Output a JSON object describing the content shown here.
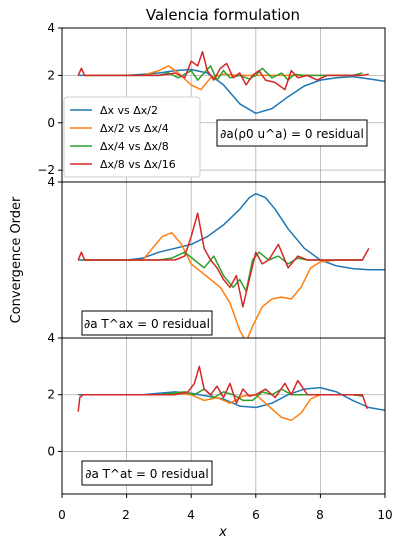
{
  "chart_data": {
    "type": "line",
    "title": "Valencia formulation",
    "xlabel": "x",
    "ylabel": "Convergence Order",
    "xlim": [
      0,
      10
    ],
    "xticks": [
      "0",
      "2",
      "4",
      "6",
      "8",
      "10"
    ],
    "grid": true,
    "legend": {
      "placement": "lower-left of top panel",
      "entries": [
        "Δx vs Δx/2",
        "Δx/2 vs Δx/4",
        "Δx/4 vs Δx/8",
        "Δx/8 vs Δx/16"
      ]
    },
    "colors": [
      "#1f77b4",
      "#ff7f0e",
      "#2ca02c",
      "#d62728"
    ],
    "panels": [
      {
        "annotation": "∂a(ρ0 u^a) = 0 residual",
        "ylim": [
          -2.5,
          4
        ],
        "yticks": [
          4,
          2,
          0,
          -2
        ],
        "ytick_labels": [
          "4",
          "2",
          "0",
          "−2"
        ],
        "series": [
          {
            "name": "Δx vs Δx/2",
            "x": [
              0.5,
              1,
              1.5,
              2,
              2.5,
              3,
              3.5,
              4,
              4.5,
              5,
              5.5,
              6,
              6.5,
              7,
              7.5,
              8,
              8.5,
              9,
              9.5,
              10
            ],
            "y": [
              2.0,
              2.0,
              2.0,
              2.0,
              2.05,
              2.1,
              2.2,
              2.25,
              2.1,
              1.6,
              0.8,
              0.4,
              0.6,
              1.1,
              1.55,
              1.8,
              1.9,
              1.95,
              1.85,
              1.75
            ]
          },
          {
            "name": "Δx/2 vs Δx/4",
            "x": [
              0.7,
              1,
              1.5,
              2,
              2.5,
              3,
              3.3,
              3.6,
              4,
              4.3,
              4.6,
              5,
              5.5,
              6,
              6.5,
              7,
              7.5,
              8,
              8.5,
              9
            ],
            "y": [
              2.0,
              2.0,
              2.0,
              2.0,
              2.0,
              2.2,
              2.4,
              2.1,
              1.6,
              1.4,
              1.9,
              2.05,
              2.0,
              2.0,
              2.0,
              2.0,
              2.0,
              2.0,
              2.0,
              2.0
            ]
          },
          {
            "name": "Δx/4 vs Δx/8",
            "x": [
              0.7,
              1,
              1.5,
              2,
              2.5,
              3,
              3.3,
              3.6,
              4,
              4.2,
              4.4,
              4.6,
              4.8,
              5,
              5.2,
              5.5,
              5.8,
              6,
              6.2,
              6.5,
              6.8,
              7,
              7.2,
              7.5,
              8,
              8.5,
              9,
              9.3
            ],
            "y": [
              2.0,
              2.0,
              2.0,
              2.0,
              2.0,
              2.0,
              2.1,
              1.9,
              2.2,
              1.8,
              2.1,
              2.4,
              1.8,
              2.2,
              1.9,
              2.0,
              1.85,
              2.0,
              2.3,
              1.9,
              2.1,
              1.8,
              2.05,
              2.0,
              2.0,
              2.0,
              2.0,
              2.1
            ]
          },
          {
            "name": "Δx/8 vs Δx/16",
            "x": [
              0.5,
              0.6,
              0.7,
              1,
              1.5,
              2,
              2.5,
              3,
              3.3,
              3.5,
              3.8,
              4.0,
              4.2,
              4.35,
              4.5,
              4.7,
              4.9,
              5.1,
              5.3,
              5.5,
              5.7,
              5.9,
              6.1,
              6.3,
              6.6,
              6.9,
              7.1,
              7.3,
              7.6,
              7.9,
              8.2,
              8.6,
              9,
              9.3,
              9.5
            ],
            "y": [
              2.0,
              2.3,
              2.0,
              2.0,
              2.0,
              2.0,
              2.0,
              2.0,
              2.05,
              2.1,
              1.9,
              2.6,
              2.4,
              3.0,
              2.2,
              1.8,
              2.3,
              2.5,
              1.9,
              2.1,
              1.6,
              2.0,
              2.2,
              1.8,
              1.7,
              1.4,
              2.2,
              1.9,
              2.0,
              1.8,
              2.0,
              2.0,
              2.0,
              2.0,
              2.05
            ]
          }
        ]
      },
      {
        "annotation": "∂a T^ax = 0 residual",
        "ylim": [
          0,
          4
        ],
        "yticks": [
          4
        ],
        "ytick_labels": [
          "4"
        ],
        "series": [
          {
            "name": "Δx vs Δx/2",
            "x": [
              0.5,
              1,
              1.5,
              2,
              2.5,
              3,
              3.5,
              4,
              4.5,
              5,
              5.5,
              5.8,
              6,
              6.3,
              6.6,
              7,
              7.5,
              8,
              8.5,
              9,
              9.5,
              10
            ],
            "y": [
              2.0,
              2.0,
              2.0,
              2.0,
              2.05,
              2.2,
              2.3,
              2.4,
              2.6,
              2.9,
              3.3,
              3.6,
              3.7,
              3.6,
              3.3,
              2.8,
              2.3,
              2.0,
              1.85,
              1.78,
              1.75,
              1.75
            ]
          },
          {
            "name": "Δx/2 vs Δx/4",
            "x": [
              0.7,
              1,
              1.5,
              2,
              2.5,
              2.8,
              3.1,
              3.4,
              3.7,
              4,
              4.3,
              4.6,
              4.9,
              5.2,
              5.5,
              5.7,
              5.9,
              6.2,
              6.5,
              6.8,
              7.1,
              7.4,
              7.7,
              8,
              8.5,
              9,
              9.3
            ],
            "y": [
              2.0,
              2.0,
              2.0,
              2.0,
              2.0,
              2.3,
              2.6,
              2.7,
              2.4,
              1.9,
              1.7,
              1.5,
              1.3,
              0.9,
              0.2,
              -0.1,
              0.3,
              0.8,
              1.0,
              1.05,
              1.0,
              1.3,
              1.8,
              1.95,
              2.0,
              2.0,
              2.0
            ]
          },
          {
            "name": "Δx/4 vs Δx/8",
            "x": [
              0.6,
              1,
              1.5,
              2,
              2.5,
              3,
              3.4,
              3.8,
              4.1,
              4.4,
              4.7,
              5,
              5.3,
              5.5,
              5.7,
              5.9,
              6.1,
              6.4,
              6.7,
              7,
              7.3,
              7.6,
              8,
              8.5,
              9,
              9.3
            ],
            "y": [
              2.0,
              2.0,
              2.0,
              2.0,
              2.0,
              2.0,
              2.05,
              2.2,
              2.0,
              1.8,
              2.1,
              1.6,
              1.3,
              1.5,
              1.2,
              2.0,
              2.2,
              2.0,
              2.1,
              1.9,
              2.05,
              2.0,
              2.0,
              2.0,
              2.0,
              2.0
            ]
          },
          {
            "name": "Δx/8 vs Δx/16",
            "x": [
              0.5,
              0.6,
              0.7,
              1,
              1.5,
              2,
              2.5,
              3,
              3.5,
              3.8,
              4.0,
              4.2,
              4.4,
              4.6,
              4.8,
              5.0,
              5.2,
              5.4,
              5.6,
              5.8,
              6.0,
              6.2,
              6.4,
              6.7,
              7.0,
              7.3,
              7.6,
              8,
              8.5,
              9,
              9.3,
              9.5
            ],
            "y": [
              2.0,
              2.2,
              2.0,
              2.0,
              2.0,
              2.0,
              2.0,
              2.0,
              2.0,
              2.1,
              2.6,
              3.2,
              2.3,
              2.0,
              1.8,
              1.5,
              1.3,
              1.6,
              0.8,
              1.5,
              2.2,
              1.9,
              2.0,
              2.4,
              1.8,
              2.1,
              2.0,
              2.0,
              2.0,
              2.0,
              2.0,
              2.3
            ]
          }
        ]
      },
      {
        "annotation": "∂a T^at = 0 residual",
        "ylim": [
          -1.5,
          4
        ],
        "yticks": [
          4,
          2,
          0
        ],
        "ytick_labels": [
          "4",
          "2",
          "0"
        ],
        "series": [
          {
            "name": "Δx vs Δx/2",
            "x": [
              0.5,
              1,
              1.5,
              2,
              2.5,
              3,
              3.5,
              4,
              4.5,
              5,
              5.5,
              6,
              6.5,
              7,
              7.5,
              8,
              8.5,
              9,
              9.5,
              10
            ],
            "y": [
              2.0,
              2.0,
              2.0,
              2.0,
              2.0,
              2.05,
              2.1,
              2.05,
              1.95,
              1.85,
              1.6,
              1.55,
              1.7,
              2.0,
              2.2,
              2.25,
              2.1,
              1.8,
              1.55,
              1.45
            ]
          },
          {
            "name": "Δx/2 vs Δx/4",
            "x": [
              0.7,
              1,
              1.5,
              2,
              2.5,
              3,
              3.3,
              3.6,
              4,
              4.4,
              4.8,
              5.2,
              5.6,
              6,
              6.4,
              6.8,
              7.1,
              7.4,
              7.7,
              8,
              8.5,
              9,
              9.3
            ],
            "y": [
              2.0,
              2.0,
              2.0,
              2.0,
              2.0,
              2.0,
              2.0,
              2.05,
              2.0,
              1.8,
              1.9,
              1.7,
              1.95,
              2.0,
              1.6,
              1.2,
              1.1,
              1.35,
              1.85,
              2.0,
              2.0,
              2.0,
              2.0
            ]
          },
          {
            "name": "Δx/4 vs Δx/8",
            "x": [
              0.7,
              1,
              1.5,
              2,
              2.5,
              3,
              3.4,
              3.8,
              4.1,
              4.4,
              4.7,
              5,
              5.3,
              5.6,
              5.9,
              6.2,
              6.5,
              6.8,
              7.1,
              7.5,
              8,
              8.5,
              9,
              9.3
            ],
            "y": [
              2.0,
              2.0,
              2.0,
              2.0,
              2.0,
              2.0,
              2.05,
              2.1,
              2.0,
              2.2,
              1.9,
              2.1,
              2.0,
              1.8,
              1.8,
              2.1,
              2.0,
              2.2,
              2.0,
              2.0,
              2.0,
              2.0,
              2.0,
              1.95
            ]
          },
          {
            "name": "Δx/8 vs Δx/16",
            "x": [
              0.5,
              0.55,
              0.65,
              1,
              1.5,
              2,
              2.5,
              3,
              3.5,
              3.9,
              4.1,
              4.25,
              4.4,
              4.6,
              4.8,
              5.0,
              5.2,
              5.4,
              5.6,
              5.8,
              6.0,
              6.3,
              6.6,
              6.9,
              7.1,
              7.3,
              7.6,
              8,
              8.5,
              9,
              9.3,
              9.45
            ],
            "y": [
              1.4,
              1.9,
              2.0,
              2.0,
              2.0,
              2.0,
              2.0,
              2.0,
              2.0,
              2.1,
              2.4,
              3.0,
              2.2,
              2.0,
              2.3,
              1.9,
              2.4,
              1.7,
              2.2,
              1.95,
              2.0,
              2.2,
              1.9,
              2.4,
              2.0,
              2.5,
              2.0,
              2.0,
              2.0,
              2.0,
              2.0,
              1.5
            ]
          }
        ]
      }
    ]
  }
}
